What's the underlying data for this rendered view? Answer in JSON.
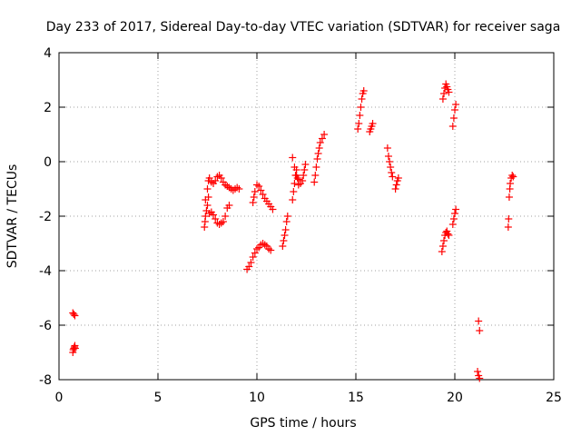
{
  "chart_data": {
    "type": "scatter",
    "title": "Day 233 of 2017, Sidereal Day-to-day VTEC variation (SDTVAR) for receiver saga",
    "xlabel": "GPS time / hours",
    "ylabel": "SDTVAR / TECUs",
    "xlim": [
      0,
      25
    ],
    "ylim": [
      -8,
      4
    ],
    "xticks": [
      "0",
      "5",
      "10",
      "15",
      "20",
      "25"
    ],
    "yticks": [
      "-8",
      "-6",
      "-4",
      "-2",
      "0",
      "2",
      "4"
    ],
    "grid": true,
    "marker": "+",
    "color": "#ff0000",
    "series": [
      {
        "values": [
          [
            0.7,
            -5.55
          ],
          [
            0.75,
            -5.6
          ],
          [
            0.8,
            -5.65
          ],
          [
            0.7,
            -7.0
          ],
          [
            0.72,
            -6.9
          ],
          [
            0.75,
            -6.85
          ],
          [
            0.78,
            -6.8
          ],
          [
            0.8,
            -6.75
          ],
          [
            0.82,
            -6.85
          ],
          [
            7.35,
            -2.4
          ],
          [
            7.38,
            -2.2
          ],
          [
            7.4,
            -2.0
          ],
          [
            7.45,
            -1.8
          ],
          [
            7.5,
            -1.6
          ],
          [
            7.55,
            -1.3
          ],
          [
            7.4,
            -1.4
          ],
          [
            7.5,
            -1.0
          ],
          [
            7.55,
            -0.7
          ],
          [
            7.6,
            -0.6
          ],
          [
            7.7,
            -0.75
          ],
          [
            7.8,
            -0.8
          ],
          [
            7.9,
            -0.7
          ],
          [
            8.0,
            -0.55
          ],
          [
            8.1,
            -0.5
          ],
          [
            8.2,
            -0.6
          ],
          [
            8.3,
            -0.75
          ],
          [
            8.4,
            -0.85
          ],
          [
            8.5,
            -0.9
          ],
          [
            8.6,
            -0.95
          ],
          [
            8.7,
            -1.0
          ],
          [
            8.8,
            -1.05
          ],
          [
            8.9,
            -1.0
          ],
          [
            9.0,
            -0.95
          ],
          [
            9.1,
            -1.0
          ],
          [
            7.6,
            -1.9
          ],
          [
            7.7,
            -1.85
          ],
          [
            7.8,
            -1.95
          ],
          [
            7.9,
            -2.1
          ],
          [
            8.0,
            -2.25
          ],
          [
            8.1,
            -2.3
          ],
          [
            8.2,
            -2.25
          ],
          [
            8.3,
            -2.2
          ],
          [
            8.4,
            -2.0
          ],
          [
            8.5,
            -1.7
          ],
          [
            8.6,
            -1.6
          ],
          [
            9.5,
            -3.95
          ],
          [
            9.6,
            -3.85
          ],
          [
            9.7,
            -3.7
          ],
          [
            9.8,
            -3.5
          ],
          [
            9.9,
            -3.35
          ],
          [
            10.0,
            -3.2
          ],
          [
            10.1,
            -3.15
          ],
          [
            10.2,
            -3.05
          ],
          [
            10.3,
            -3.0
          ],
          [
            10.4,
            -3.05
          ],
          [
            10.5,
            -3.1
          ],
          [
            10.6,
            -3.2
          ],
          [
            10.7,
            -3.25
          ],
          [
            9.8,
            -1.5
          ],
          [
            9.85,
            -1.3
          ],
          [
            9.9,
            -1.1
          ],
          [
            10.0,
            -0.85
          ],
          [
            10.1,
            -0.9
          ],
          [
            10.2,
            -1.05
          ],
          [
            10.3,
            -1.2
          ],
          [
            10.4,
            -1.35
          ],
          [
            10.5,
            -1.45
          ],
          [
            10.6,
            -1.55
          ],
          [
            10.7,
            -1.65
          ],
          [
            10.8,
            -1.75
          ],
          [
            11.3,
            -3.1
          ],
          [
            11.35,
            -2.9
          ],
          [
            11.4,
            -2.7
          ],
          [
            11.45,
            -2.5
          ],
          [
            11.5,
            -2.2
          ],
          [
            11.55,
            -2.0
          ],
          [
            11.8,
            -1.4
          ],
          [
            11.85,
            -1.1
          ],
          [
            11.9,
            -0.8
          ],
          [
            11.95,
            -0.5
          ],
          [
            12.0,
            -0.3
          ],
          [
            12.05,
            -0.6
          ],
          [
            12.1,
            -0.85
          ],
          [
            12.2,
            -0.8
          ],
          [
            12.3,
            -0.7
          ],
          [
            12.35,
            -0.5
          ],
          [
            12.4,
            -0.3
          ],
          [
            12.45,
            -0.1
          ],
          [
            11.8,
            0.15
          ],
          [
            11.9,
            -0.2
          ],
          [
            12.0,
            -0.5
          ],
          [
            12.1,
            -0.65
          ],
          [
            12.9,
            -0.75
          ],
          [
            12.95,
            -0.5
          ],
          [
            13.0,
            -0.2
          ],
          [
            13.05,
            0.1
          ],
          [
            13.1,
            0.3
          ],
          [
            13.15,
            0.5
          ],
          [
            13.2,
            0.7
          ],
          [
            13.3,
            0.85
          ],
          [
            13.4,
            1.0
          ],
          [
            15.1,
            1.2
          ],
          [
            15.15,
            1.4
          ],
          [
            15.2,
            1.7
          ],
          [
            15.25,
            2.0
          ],
          [
            15.3,
            2.3
          ],
          [
            15.35,
            2.5
          ],
          [
            15.4,
            2.6
          ],
          [
            15.7,
            1.1
          ],
          [
            15.75,
            1.2
          ],
          [
            15.8,
            1.3
          ],
          [
            15.85,
            1.4
          ],
          [
            16.6,
            0.5
          ],
          [
            16.65,
            0.2
          ],
          [
            16.7,
            0.0
          ],
          [
            16.75,
            -0.2
          ],
          [
            16.8,
            -0.4
          ],
          [
            16.85,
            -0.55
          ],
          [
            17.0,
            -1.0
          ],
          [
            17.05,
            -0.85
          ],
          [
            17.1,
            -0.7
          ],
          [
            17.15,
            -0.6
          ],
          [
            19.35,
            -3.3
          ],
          [
            19.4,
            -3.1
          ],
          [
            19.45,
            -2.9
          ],
          [
            19.5,
            -2.7
          ],
          [
            19.55,
            -2.6
          ],
          [
            19.6,
            -2.55
          ],
          [
            19.65,
            -2.65
          ],
          [
            19.7,
            -2.7
          ],
          [
            19.4,
            2.3
          ],
          [
            19.45,
            2.5
          ],
          [
            19.5,
            2.7
          ],
          [
            19.55,
            2.85
          ],
          [
            19.6,
            2.75
          ],
          [
            19.65,
            2.65
          ],
          [
            19.7,
            2.55
          ],
          [
            19.9,
            1.3
          ],
          [
            19.95,
            1.6
          ],
          [
            20.0,
            1.9
          ],
          [
            20.05,
            2.1
          ],
          [
            19.9,
            -2.3
          ],
          [
            19.95,
            -2.1
          ],
          [
            20.0,
            -1.9
          ],
          [
            20.05,
            -1.75
          ],
          [
            21.2,
            -5.85
          ],
          [
            21.25,
            -6.2
          ],
          [
            21.15,
            -7.7
          ],
          [
            21.2,
            -7.85
          ],
          [
            21.25,
            -7.95
          ],
          [
            22.7,
            -2.4
          ],
          [
            22.72,
            -2.1
          ],
          [
            22.75,
            -1.3
          ],
          [
            22.78,
            -1.0
          ],
          [
            22.8,
            -0.8
          ],
          [
            22.85,
            -0.6
          ],
          [
            22.9,
            -0.5
          ],
          [
            22.95,
            -0.55
          ]
        ]
      }
    ]
  }
}
